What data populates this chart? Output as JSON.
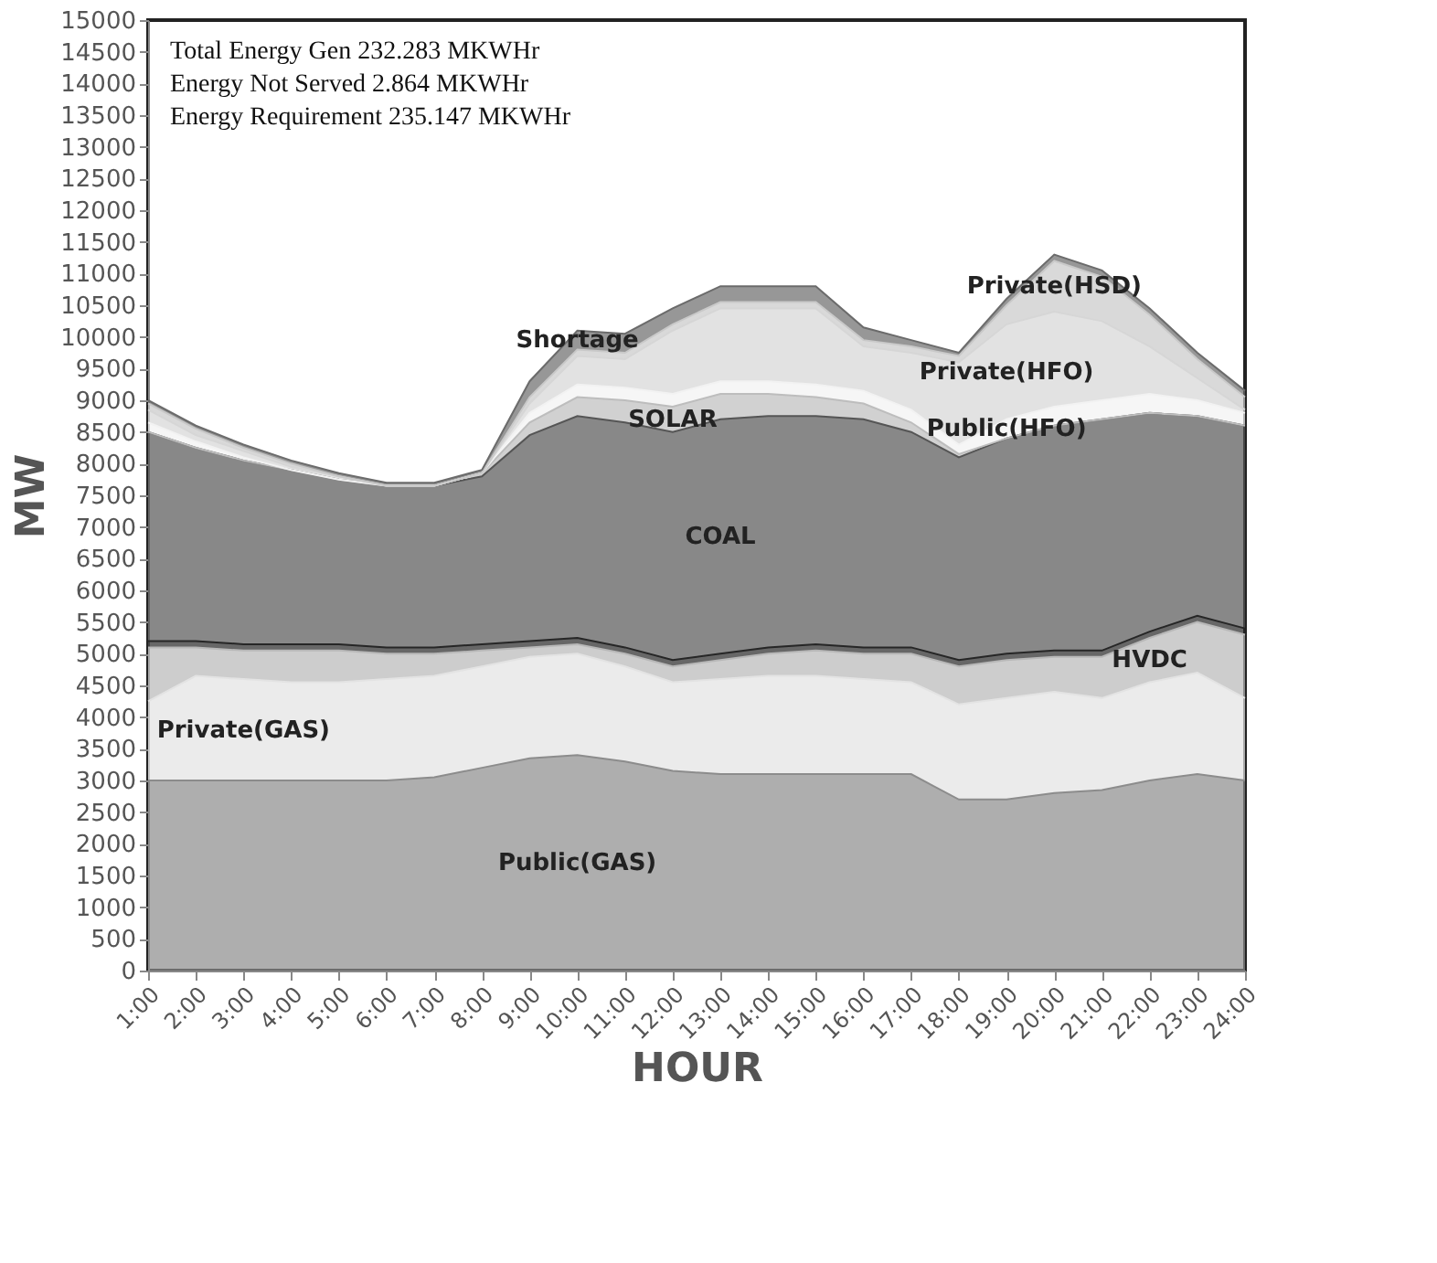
{
  "chart_data": {
    "type": "area",
    "stacked": true,
    "xlabel": "HOUR",
    "ylabel": "MW",
    "categories": [
      "1:00",
      "2:00",
      "3:00",
      "4:00",
      "5:00",
      "6:00",
      "7:00",
      "8:00",
      "9:00",
      "10:00",
      "11:00",
      "12:00",
      "13:00",
      "14:00",
      "15:00",
      "16:00",
      "17:00",
      "18:00",
      "19:00",
      "20:00",
      "21:00",
      "22:00",
      "23:00",
      "24:00"
    ],
    "series": [
      {
        "name": "Public(GAS)",
        "color": "#8c8c8c",
        "values": [
          3000,
          3000,
          3000,
          3000,
          3000,
          3000,
          3050,
          3200,
          3350,
          3400,
          3300,
          3150,
          3100,
          3100,
          3100,
          3100,
          3100,
          2700,
          2700,
          2800,
          2850,
          3000,
          3100,
          3000
        ]
      },
      {
        "name": "Private(GAS)",
        "color": "#e3e3e3",
        "values": [
          1250,
          1650,
          1600,
          1550,
          1550,
          1600,
          1600,
          1600,
          1600,
          1600,
          1500,
          1400,
          1500,
          1550,
          1550,
          1500,
          1450,
          1500,
          1600,
          1600,
          1450,
          1550,
          1600,
          1300
        ]
      },
      {
        "name": "HVDC",
        "color": "#b8b8b8",
        "values": [
          850,
          450,
          450,
          500,
          500,
          400,
          350,
          250,
          150,
          150,
          200,
          250,
          300,
          350,
          400,
          400,
          450,
          600,
          600,
          550,
          650,
          700,
          800,
          1000
        ]
      },
      {
        "color": "#262626",
        "values": [
          100,
          100,
          100,
          100,
          100,
          100,
          100,
          100,
          100,
          100,
          100,
          100,
          100,
          100,
          100,
          100,
          100,
          100,
          100,
          100,
          100,
          100,
          100,
          100
        ]
      },
      {
        "name": "COAL",
        "color": "#555555",
        "values": [
          3300,
          3050,
          2900,
          2750,
          2600,
          2550,
          2550,
          2650,
          3250,
          3500,
          3550,
          3600,
          3700,
          3650,
          3600,
          3600,
          3400,
          3200,
          3400,
          3550,
          3650,
          3450,
          3150,
          3200
        ]
      },
      {
        "name": "SOLAR",
        "color": "#bdbdbd",
        "values": [
          0,
          0,
          0,
          0,
          0,
          0,
          0,
          50,
          200,
          300,
          350,
          400,
          400,
          350,
          300,
          250,
          150,
          50,
          0,
          0,
          0,
          0,
          0,
          0
        ]
      },
      {
        "name": "Public(HFO)",
        "color": "#f2f2f2",
        "values": [
          150,
          100,
          50,
          0,
          0,
          0,
          0,
          0,
          150,
          200,
          200,
          200,
          200,
          200,
          200,
          200,
          200,
          150,
          300,
          300,
          300,
          300,
          250,
          200
        ]
      },
      {
        "name": "Private(HFO)",
        "color": "#d6d6d6",
        "values": [
          200,
          100,
          100,
          50,
          50,
          0,
          0,
          0,
          150,
          450,
          450,
          1000,
          1150,
          1150,
          1200,
          700,
          900,
          1300,
          1500,
          1500,
          1250,
          750,
          350,
          50
        ]
      },
      {
        "name": "Private(HSD)",
        "color": "#c9c9c9",
        "values": [
          100,
          100,
          50,
          50,
          0,
          0,
          0,
          0,
          100,
          100,
          100,
          100,
          100,
          100,
          100,
          100,
          100,
          100,
          300,
          800,
          700,
          500,
          300,
          200
        ]
      },
      {
        "name": "Shortage",
        "color": "#6b6b6b",
        "values": [
          50,
          50,
          50,
          50,
          50,
          50,
          50,
          50,
          250,
          300,
          300,
          250,
          250,
          250,
          250,
          200,
          100,
          50,
          100,
          100,
          100,
          100,
          100,
          100
        ]
      }
    ],
    "ylim": [
      0,
      15000
    ],
    "yticks": [
      0,
      500,
      1000,
      1500,
      2000,
      2500,
      3000,
      3500,
      4000,
      4500,
      5000,
      5500,
      6000,
      6500,
      7000,
      7500,
      8000,
      8500,
      9000,
      9500,
      10000,
      10500,
      11000,
      11500,
      12000,
      12500,
      13000,
      13500,
      14000,
      14500,
      15000
    ],
    "grid": false,
    "legend": false,
    "annotations": [
      "Total Energy Gen 232.283 MKWHr",
      "Energy Not Served  2.864 MKWHr",
      "Energy Requirement      235.147 MKWHr"
    ]
  }
}
